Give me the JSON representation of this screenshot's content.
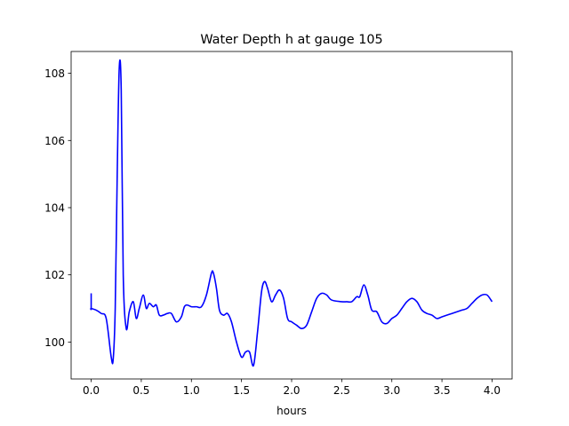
{
  "chart_data": {
    "type": "line",
    "title": "Water Depth h at gauge 105",
    "xlabel": "hours",
    "ylabel": "",
    "xlim": [
      -0.2,
      4.2
    ],
    "ylim": [
      98.9,
      108.65
    ],
    "xticks": [
      0.0,
      0.5,
      1.0,
      1.5,
      2.0,
      2.5,
      3.0,
      3.5,
      4.0
    ],
    "xtick_labels": [
      "0.0",
      "0.5",
      "1.0",
      "1.5",
      "2.0",
      "2.5",
      "3.0",
      "3.5",
      "4.0"
    ],
    "yticks": [
      100,
      102,
      104,
      106,
      108
    ],
    "ytick_labels": [
      "100",
      "102",
      "104",
      "106",
      "108"
    ],
    "grid": false,
    "series": [
      {
        "color": "#0000ff",
        "x": [
          0.0,
          0.0,
          0.0,
          0.05,
          0.1,
          0.15,
          0.2,
          0.22,
          0.24,
          0.26,
          0.28,
          0.3,
          0.32,
          0.35,
          0.38,
          0.42,
          0.45,
          0.48,
          0.52,
          0.55,
          0.58,
          0.62,
          0.65,
          0.68,
          0.72,
          0.76,
          0.8,
          0.85,
          0.9,
          0.93,
          0.96,
          1.0,
          1.05,
          1.1,
          1.15,
          1.2,
          1.22,
          1.25,
          1.28,
          1.32,
          1.36,
          1.4,
          1.45,
          1.5,
          1.54,
          1.58,
          1.62,
          1.66,
          1.7,
          1.73,
          1.76,
          1.8,
          1.84,
          1.88,
          1.92,
          1.96,
          2.0,
          2.05,
          2.1,
          2.15,
          2.2,
          2.25,
          2.3,
          2.35,
          2.4,
          2.5,
          2.55,
          2.6,
          2.65,
          2.68,
          2.72,
          2.76,
          2.8,
          2.85,
          2.9,
          2.95,
          3.0,
          3.05,
          3.1,
          3.15,
          3.2,
          3.25,
          3.3,
          3.35,
          3.4,
          3.45,
          3.5,
          3.6,
          3.7,
          3.75,
          3.8,
          3.85,
          3.9,
          3.95,
          4.0
        ],
        "y": [
          101.45,
          101.0,
          101.0,
          100.95,
          100.85,
          100.7,
          99.55,
          99.5,
          101.0,
          105.0,
          108.15,
          107.5,
          102.0,
          100.4,
          100.9,
          101.2,
          100.7,
          101.0,
          101.4,
          101.0,
          101.15,
          101.05,
          101.1,
          100.8,
          100.8,
          100.85,
          100.85,
          100.6,
          100.75,
          101.05,
          101.1,
          101.05,
          101.05,
          101.05,
          101.4,
          102.05,
          102.05,
          101.6,
          100.95,
          100.8,
          100.85,
          100.6,
          100.0,
          99.55,
          99.7,
          99.7,
          99.3,
          100.3,
          101.5,
          101.8,
          101.6,
          101.2,
          101.4,
          101.55,
          101.3,
          100.7,
          100.6,
          100.5,
          100.4,
          100.5,
          100.9,
          101.3,
          101.45,
          101.4,
          101.25,
          101.2,
          101.2,
          101.2,
          101.35,
          101.35,
          101.7,
          101.4,
          100.95,
          100.9,
          100.6,
          100.55,
          100.7,
          100.8,
          101.0,
          101.2,
          101.3,
          101.2,
          100.95,
          100.85,
          100.8,
          100.7,
          100.75,
          100.85,
          100.95,
          101.0,
          101.15,
          101.3,
          101.4,
          101.4,
          101.2
        ]
      }
    ]
  }
}
